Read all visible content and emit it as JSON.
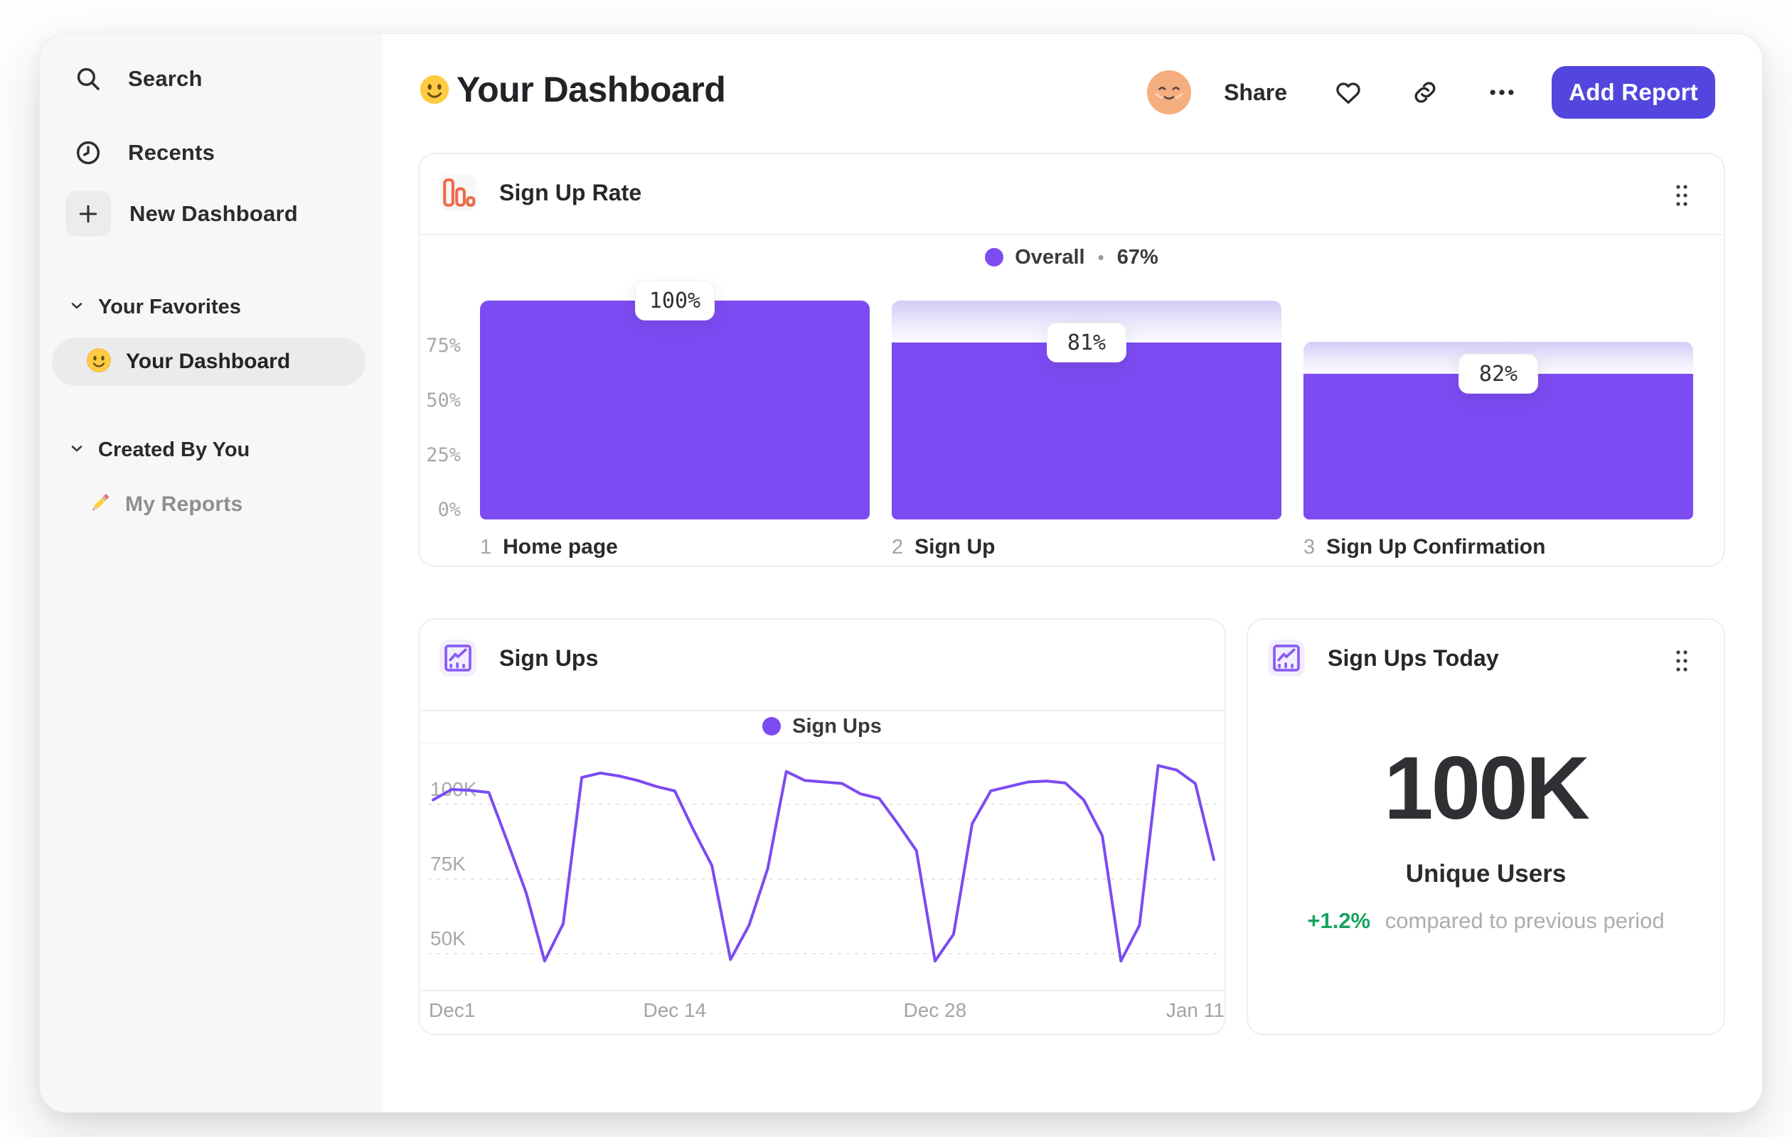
{
  "header": {
    "title": "Your Dashboard",
    "title_emoji": "slightly-smiling-face",
    "share_label": "Share",
    "add_report_label": "Add Report"
  },
  "sidebar": {
    "nav": [
      {
        "icon": "search-icon",
        "label": "Search"
      },
      {
        "icon": "clock-icon",
        "label": "Recents"
      },
      {
        "icon": "plus-icon",
        "label": "New Dashboard"
      }
    ],
    "sections": [
      {
        "label": "Your Favorites",
        "items": [
          {
            "emoji": "slightly-smiling-face",
            "label": "Your Dashboard",
            "selected": true
          }
        ]
      },
      {
        "label": "Created By You",
        "items": [
          {
            "emoji": "pencil",
            "label": "My Reports",
            "selected": false
          }
        ]
      }
    ]
  },
  "colors": {
    "accent": "#7C4BF2",
    "button": "#5246DE",
    "green": "#17A35F",
    "icon_orange": "#EE6A49",
    "icon_purple": "#8B5CF6"
  },
  "chart_data": [
    {
      "id": "signup_rate",
      "type": "bar",
      "variant": "funnel",
      "title": "Sign Up Rate",
      "legend": {
        "series": "Overall",
        "separator": "•",
        "value": "67%",
        "position": "top-center"
      },
      "categories": [
        "Home page",
        "Sign Up",
        "Sign Up Confirmation"
      ],
      "step_indexes": [
        "1",
        "2",
        "3"
      ],
      "step_labels": [
        "100%",
        "81%",
        "82%"
      ],
      "conversion_from_previous_pct": [
        100,
        81,
        82
      ],
      "cumulative_pct": [
        100,
        81,
        66.4
      ],
      "y_ticks": [
        {
          "label": "75%",
          "value": 75
        },
        {
          "label": "50%",
          "value": 50
        },
        {
          "label": "25%",
          "value": 25
        },
        {
          "label": "0%",
          "value": 0
        }
      ],
      "ylim": [
        0,
        100
      ],
      "grid": false
    },
    {
      "id": "sign_ups",
      "type": "line",
      "title": "Sign Ups",
      "legend": {
        "series": "Sign Ups",
        "position": "top-center"
      },
      "unit": "K",
      "y_ticks": [
        {
          "label": "100K",
          "value": 100
        },
        {
          "label": "75K",
          "value": 75
        },
        {
          "label": "50K",
          "value": 50
        }
      ],
      "x_ticks": [
        {
          "label": "Dec1",
          "day": 1
        },
        {
          "label": "Dec 14",
          "day": 14
        },
        {
          "label": "Dec 28",
          "day": 28
        },
        {
          "label": "Jan 11",
          "day": 42
        }
      ],
      "grid": "dashed-horizontal",
      "values": [
        97,
        100.5,
        100.2,
        99.5,
        83,
        66,
        43,
        55.5,
        104.5,
        106,
        105,
        103.5,
        101.5,
        100,
        87,
        75,
        43.5,
        55,
        74,
        106.5,
        103.5,
        103,
        102.5,
        99,
        97.5,
        89,
        80,
        43,
        52,
        89,
        100,
        101.5,
        103,
        103.3,
        102.7,
        97,
        85,
        43,
        55,
        108.5,
        107,
        102.5,
        77
      ]
    },
    {
      "id": "sign_ups_today",
      "type": "kpi",
      "title": "Sign Ups Today",
      "value": "100K",
      "metric": "Unique Users",
      "delta": "+1.2%",
      "delta_direction": "up",
      "delta_note": "compared to previous period"
    }
  ]
}
